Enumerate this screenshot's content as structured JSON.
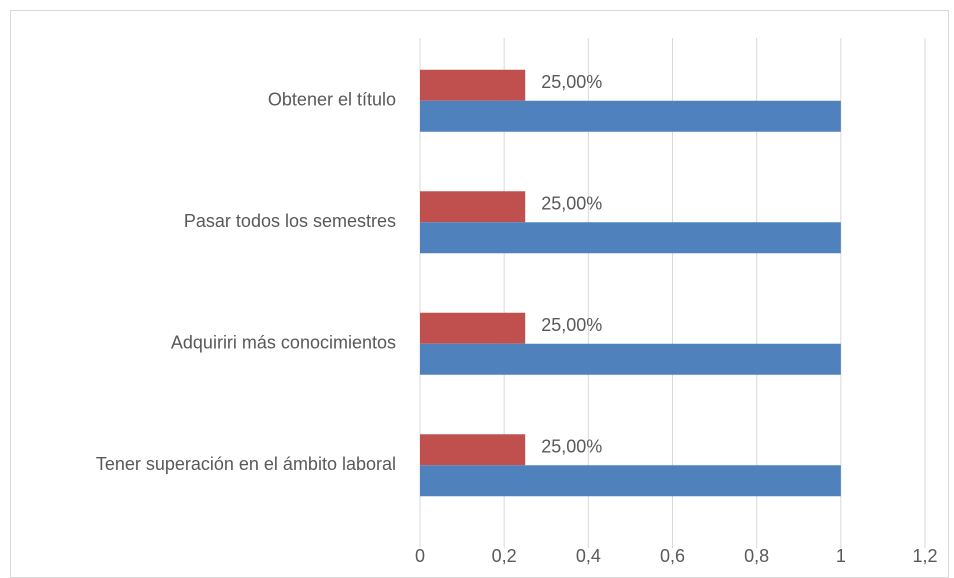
{
  "chart_data": {
    "type": "barh",
    "categories": [
      "Obtener el título",
      "Pasar todos los semestres",
      "Adquiriri más conocimientos",
      "Tener superación en el ámbito laboral"
    ],
    "series": [
      {
        "color": "#c0504d",
        "values": [
          0.25,
          0.25,
          0.25,
          0.25
        ],
        "value_labels": [
          "25,00%",
          "25,00%",
          "25,00%",
          "25,00%"
        ]
      },
      {
        "color": "#4f81bd",
        "values": [
          1,
          1,
          1,
          1
        ]
      }
    ],
    "xlim": [
      0,
      1.2
    ],
    "xticks": [
      0,
      {
        "value": 0.2,
        "label": "0,2"
      },
      {
        "value": 0.4,
        "label": "0,4"
      },
      {
        "value": 0.6,
        "label": "0,6"
      },
      {
        "value": 0.8,
        "label": "0,8"
      },
      1,
      {
        "value": 1.2,
        "label": "1,2"
      }
    ],
    "grid": true
  }
}
